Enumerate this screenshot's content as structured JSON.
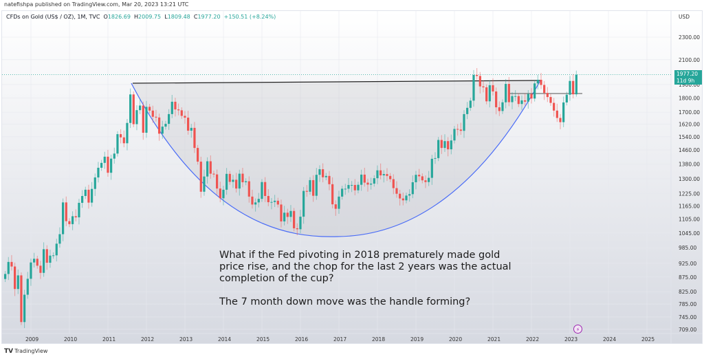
{
  "header": {
    "published": "natefishpa published on TradingView.com, Mar 20, 2023 13:21 UTC"
  },
  "legend": {
    "symbol": "CFDs on Gold (US$ / OZ), 1M, TVC",
    "o_label": "O",
    "o": "1826.69",
    "h_label": "H",
    "h": "2009.75",
    "l_label": "L",
    "l": "1809.48",
    "c_label": "C",
    "c": "1977.20",
    "change": "+150.51 (+8.24%)"
  },
  "price_axis": {
    "currency": "USD",
    "ticks": [
      2300,
      2100,
      1900,
      1800,
      1700,
      1620,
      1540,
      1460,
      1380,
      1300,
      1225,
      1165,
      1105,
      1045,
      985,
      925,
      875,
      825,
      785,
      745,
      709
    ]
  },
  "price_tag": {
    "price": "1977.20",
    "countdown": "11d 9h"
  },
  "time_axis": {
    "ticks": [
      "2009",
      "2010",
      "2011",
      "2012",
      "2013",
      "2014",
      "2015",
      "2016",
      "2017",
      "2018",
      "2019",
      "2020",
      "2021",
      "2022",
      "2023",
      "2024",
      "2025"
    ]
  },
  "annotation": "What if the Fed pivoting in 2018 prematurely made gold price rise, and the chop for the last 2 years was the actual completion of the cup?\n\nThe 7 month down move was the handle forming?",
  "footer": {
    "brand": "TradingView"
  },
  "colors": {
    "up": "#26a69a",
    "down": "#ef5350",
    "curve": "#4a6cf7",
    "rim": "#222222"
  },
  "chart_data": {
    "type": "candlestick",
    "start": "2008-05",
    "interval": "1M",
    "scale": "log",
    "closes": [
      886,
      930,
      913,
      834,
      881,
      730,
      815,
      869,
      928,
      942,
      916,
      890,
      979,
      927,
      954,
      955,
      1001,
      1040,
      1182,
      1096,
      1083,
      1118,
      1113,
      1180,
      1213,
      1244,
      1181,
      1248,
      1307,
      1359,
      1386,
      1421,
      1332,
      1410,
      1439,
      1556,
      1536,
      1500,
      1628,
      1826,
      1620,
      1714,
      1746,
      1565,
      1737,
      1711,
      1669,
      1664,
      1559,
      1604,
      1622,
      1687,
      1773,
      1719,
      1713,
      1675,
      1663,
      1578,
      1596,
      1472,
      1393,
      1234,
      1312,
      1395,
      1327,
      1323,
      1250,
      1202,
      1244,
      1326,
      1284,
      1295,
      1250,
      1327,
      1282,
      1287,
      1210,
      1172,
      1182,
      1199,
      1283,
      1213,
      1183,
      1184,
      1190,
      1172,
      1095,
      1134,
      1115,
      1142,
      1065,
      1061,
      1116,
      1238,
      1234,
      1293,
      1214,
      1321,
      1351,
      1308,
      1315,
      1272,
      1173,
      1152,
      1210,
      1249,
      1249,
      1268,
      1268,
      1241,
      1269,
      1322,
      1280,
      1270,
      1275,
      1303,
      1345,
      1318,
      1325,
      1315,
      1298,
      1252,
      1224,
      1201,
      1192,
      1215,
      1222,
      1282,
      1321,
      1313,
      1292,
      1283,
      1305,
      1409,
      1413,
      1520,
      1472,
      1513,
      1464,
      1517,
      1589,
      1585,
      1577,
      1687,
      1730,
      1781,
      1975,
      1967,
      1886,
      1879,
      1776,
      1895,
      1848,
      1734,
      1708,
      1769,
      1905,
      1770,
      1814,
      1814,
      1757,
      1783,
      1774,
      1829,
      1796,
      1909,
      1937,
      1897,
      1837,
      1807,
      1765,
      1711,
      1661,
      1633,
      1768,
      1824,
      1928,
      1827,
      1977
    ],
    "last_bar": {
      "open": 1826.69,
      "high": 2009.75,
      "low": 1809.48,
      "close": 1977.2
    }
  }
}
